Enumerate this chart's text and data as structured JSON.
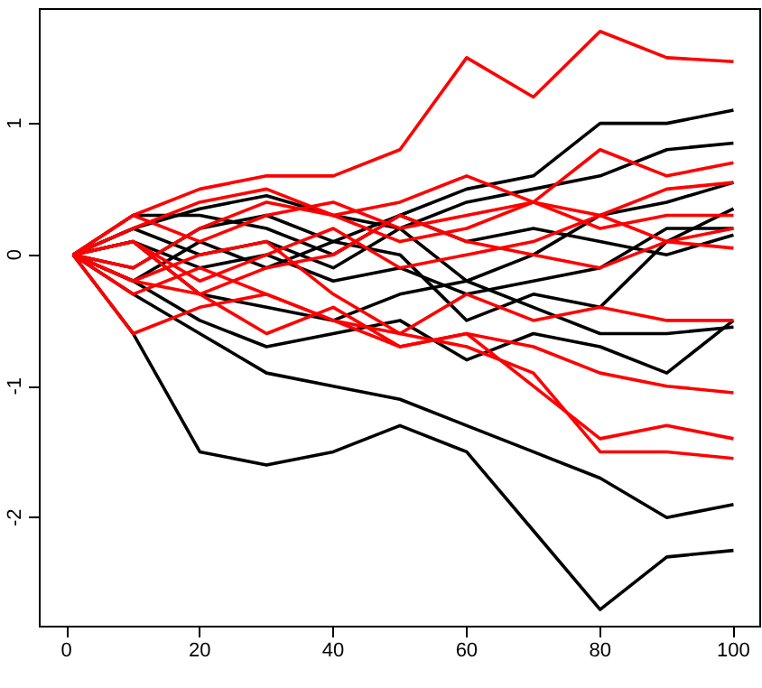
{
  "chart_data": {
    "type": "line",
    "x": [
      1,
      10,
      20,
      30,
      40,
      50,
      60,
      70,
      80,
      90,
      100
    ],
    "xlim": [
      -4,
      104
    ],
    "xticks": [
      0,
      20,
      40,
      60,
      80,
      100
    ],
    "ylim": [
      -2.83,
      1.87
    ],
    "yticks": [
      -2,
      -1,
      0,
      1
    ],
    "grid": false,
    "marker": "none",
    "line_style": "solid",
    "series": [
      {
        "color": "#000000",
        "values": [
          0,
          -0.6,
          -1.5,
          -1.6,
          -1.5,
          -1.3,
          -1.5,
          -2.1,
          -2.7,
          -2.3,
          -2.25
        ]
      },
      {
        "color": "#000000",
        "values": [
          0,
          -0.3,
          -0.6,
          -0.9,
          -1.0,
          -1.1,
          -1.3,
          -1.5,
          -1.7,
          -2.0,
          -1.9
        ]
      },
      {
        "color": "#000000",
        "values": [
          0,
          -0.2,
          -0.5,
          -0.7,
          -0.6,
          -0.5,
          -0.8,
          -0.6,
          -0.7,
          -0.9,
          -0.5
        ]
      },
      {
        "color": "#000000",
        "values": [
          0,
          0.1,
          -0.3,
          -0.4,
          -0.5,
          -0.3,
          -0.2,
          -0.4,
          -0.6,
          -0.6,
          -0.55
        ]
      },
      {
        "color": "#000000",
        "values": [
          0,
          0.3,
          0.3,
          0.2,
          0.0,
          0.3,
          0.5,
          0.6,
          1.0,
          1.0,
          1.1
        ]
      },
      {
        "color": "#000000",
        "values": [
          0,
          0.2,
          0.35,
          0.45,
          0.3,
          0.2,
          0.4,
          0.5,
          0.6,
          0.8,
          0.85
        ]
      },
      {
        "color": "#000000",
        "values": [
          0,
          0.2,
          0,
          0.1,
          -0.1,
          0.2,
          -0.2,
          0,
          0.3,
          0.4,
          0.55
        ]
      },
      {
        "color": "#000000",
        "values": [
          0,
          -0.1,
          0.2,
          0.3,
          0.1,
          0.0,
          -0.5,
          -0.3,
          -0.4,
          0.1,
          0.35
        ]
      },
      {
        "color": "#000000",
        "values": [
          0,
          0.1,
          -0.1,
          0,
          -0.2,
          -0.1,
          -0.3,
          -0.2,
          -0.1,
          0.2,
          0.2
        ]
      },
      {
        "color": "#000000",
        "values": [
          0,
          -0.2,
          0.1,
          -0.1,
          0.1,
          0.3,
          0.1,
          0.2,
          0.1,
          0.0,
          0.15
        ]
      },
      {
        "color": "#ff0000",
        "values": [
          0,
          0.3,
          0.5,
          0.6,
          0.6,
          0.8,
          1.5,
          1.2,
          1.7,
          1.5,
          1.47
        ]
      },
      {
        "color": "#ff0000",
        "values": [
          0,
          0.2,
          0.4,
          0.5,
          0.3,
          0.4,
          0.6,
          0.4,
          0.8,
          0.6,
          0.7
        ]
      },
      {
        "color": "#ff0000",
        "values": [
          0,
          0.3,
          0.1,
          0.3,
          0.4,
          0.2,
          0.3,
          0.4,
          0.3,
          0.5,
          0.55
        ]
      },
      {
        "color": "#ff0000",
        "values": [
          0,
          -0.1,
          0.2,
          0.4,
          0.3,
          0.1,
          0.2,
          0.4,
          0.2,
          0.3,
          0.3
        ]
      },
      {
        "color": "#ff0000",
        "values": [
          0,
          0.1,
          -0.2,
          0.0,
          0.2,
          -0.1,
          0.0,
          0.1,
          0.3,
          0.1,
          0.2
        ]
      },
      {
        "color": "#ff0000",
        "values": [
          0,
          -0.2,
          -0.3,
          -0.1,
          0.0,
          0.3,
          0.1,
          0.0,
          -0.1,
          0.1,
          0.05
        ]
      },
      {
        "color": "#ff0000",
        "values": [
          0,
          -0.3,
          -0.1,
          -0.3,
          -0.5,
          -0.6,
          -0.3,
          -0.5,
          -0.4,
          -0.5,
          -0.5
        ]
      },
      {
        "color": "#ff0000",
        "values": [
          0,
          -0.6,
          -0.4,
          -0.3,
          -0.5,
          -0.7,
          -0.6,
          -0.7,
          -0.9,
          -1.0,
          -1.05
        ]
      },
      {
        "color": "#ff0000",
        "values": [
          0,
          0.1,
          -0.3,
          -0.6,
          -0.4,
          -0.7,
          -0.6,
          -1.0,
          -1.4,
          -1.3,
          -1.4
        ]
      },
      {
        "color": "#ff0000",
        "values": [
          0,
          -0.2,
          0,
          0.1,
          -0.3,
          -0.6,
          -0.7,
          -0.9,
          -1.5,
          -1.5,
          -1.55
        ]
      }
    ]
  }
}
